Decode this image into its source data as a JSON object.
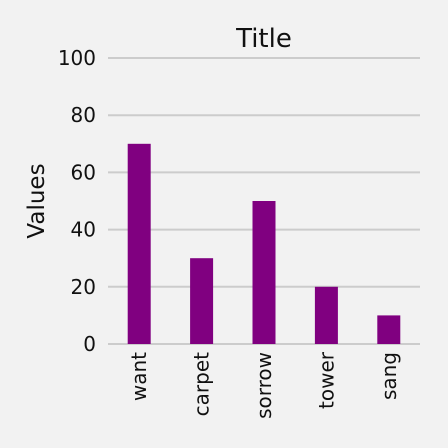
{
  "chart_data": {
    "type": "bar",
    "title": "Title",
    "xlabel": "",
    "ylabel": "Values",
    "categories": [
      "want",
      "carpet",
      "sorrow",
      "tower",
      "sang"
    ],
    "values": [
      70,
      30,
      50,
      20,
      10
    ],
    "ylim": [
      0,
      100
    ],
    "yticks": [
      0,
      20,
      40,
      60,
      80,
      100
    ],
    "grid": true,
    "bar_color": "#800080",
    "grid_color": "#cccccc",
    "background_color": "#f2f2f2"
  }
}
